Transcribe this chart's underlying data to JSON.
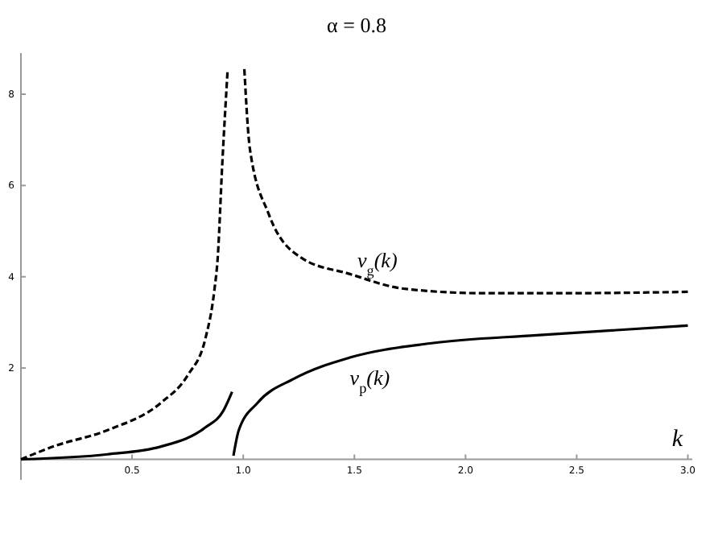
{
  "chart_data": {
    "type": "line",
    "xlabel": "k",
    "annotations": [
      "α = 0.8"
    ],
    "series": [
      {
        "color": "#000000",
        "line_style": "dashed",
        "x": [
          0,
          0.145,
          0.39,
          0.63,
          0.75,
          0.83,
          0.87,
          0.885,
          0.906,
          0.93
        ],
        "values": [
          0,
          0.28,
          0.64,
          1.24,
          1.84,
          2.65,
          3.7,
          4.4,
          6.5,
          8.55
        ]
      },
      {
        "name": "v$_{g}$(k)",
        "color": "#000000",
        "line_style": "dashed",
        "x": [
          1.005,
          1.03,
          1.115,
          1.26,
          1.48,
          1.72,
          2.08,
          2.44,
          3.0
        ],
        "values": [
          8.55,
          6.8,
          5.37,
          4.42,
          4.06,
          3.74,
          3.64,
          3.64,
          3.67
        ]
      },
      {
        "color": "#000000",
        "line_style": "solid",
        "x": [
          0,
          0.39,
          0.63,
          0.83,
          0.91,
          0.95
        ],
        "values": [
          0,
          0.11,
          0.28,
          0.7,
          1.06,
          1.48
        ]
      },
      {
        "name": "v$_{p}$(k)",
        "color": "#000000",
        "line_style": "solid",
        "x": [
          0.956,
          0.98,
          1.065,
          1.23,
          1.48,
          1.84,
          2.32,
          3.0
        ],
        "values": [
          0.08,
          0.64,
          1.24,
          1.77,
          2.23,
          2.54,
          2.72,
          2.93
        ]
      }
    ],
    "xlim": [
      0,
      3.02
    ],
    "ylim": [
      -0.45,
      8.9
    ],
    "xticks": [
      {
        "value": 0.5,
        "label": "0.5"
      },
      {
        "value": 1,
        "label": "1.0"
      },
      {
        "value": 1.5,
        "label": "1.5"
      },
      {
        "value": 2,
        "label": "2.0"
      },
      {
        "value": 2.5,
        "label": "2.5"
      },
      {
        "value": 3,
        "label": "3.0"
      }
    ],
    "yticks": [
      2,
      4,
      6,
      8
    ],
    "grid": false
  }
}
